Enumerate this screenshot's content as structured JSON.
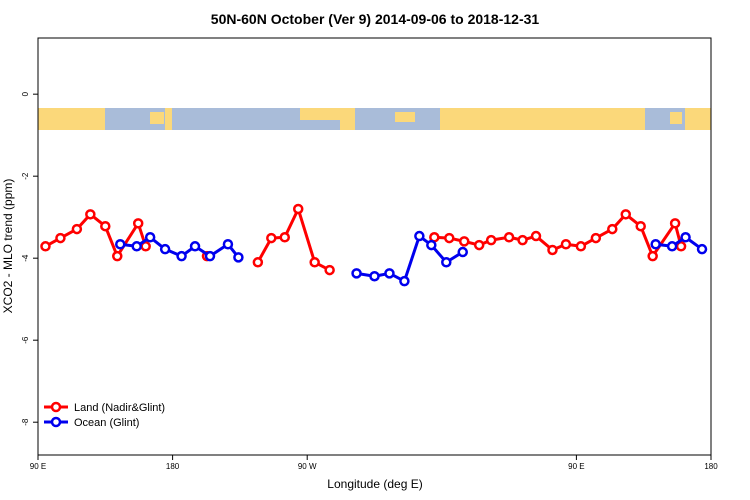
{
  "chart_data": {
    "type": "line",
    "title": "50N-60N October (Ver 9)   2014-09-06 to 2018-12-31",
    "x_label": "Longitude (deg E)",
    "y_label": "XCO2 - MLO trend (ppm)",
    "xlim": [
      90,
      540
    ],
    "ylim": [
      -8.8,
      1.37
    ],
    "xticks": [
      {
        "value": 90,
        "label": "90 E"
      },
      180,
      {
        "value": 270,
        "label": "90 W"
      },
      {
        "value": 450,
        "label": "90 E"
      },
      {
        "value": 540,
        "label": "180"
      }
    ],
    "yticks": [
      -8,
      -6,
      -4,
      -2,
      0
    ],
    "legend": "bottom-left",
    "series": [
      {
        "name": "Land (Nadir&Glint)",
        "color": "#ff0000",
        "x": [
          95,
          105,
          116,
          125,
          135,
          143,
          157,
          162,
          null,
          203,
          null,
          237,
          246,
          255,
          264,
          275,
          285,
          null,
          355,
          365,
          375,
          385,
          393,
          405,
          414,
          423,
          434,
          443,
          453,
          463,
          474,
          483,
          493,
          501,
          516,
          520
        ],
        "values": [
          -3.71,
          -3.51,
          -3.29,
          -2.93,
          -3.22,
          -3.95,
          -3.15,
          -3.71,
          null,
          -3.95,
          null,
          -4.1,
          -3.51,
          -3.49,
          -2.8,
          -4.1,
          -4.29,
          null,
          -3.49,
          -3.51,
          -3.59,
          -3.68,
          -3.56,
          -3.49,
          -3.56,
          -3.46,
          -3.8,
          -3.66,
          -3.71,
          -3.51,
          -3.29,
          -2.93,
          -3.22,
          -3.95,
          -3.15,
          -3.71
        ]
      },
      {
        "name": "Ocean (Glint)",
        "color": "#0000ee",
        "x": [
          145,
          156,
          165,
          175,
          186,
          195,
          205,
          217,
          224,
          null,
          303,
          315,
          325,
          335,
          345,
          353,
          363,
          374,
          null,
          503,
          514,
          523,
          534
        ],
        "values": [
          -3.66,
          -3.71,
          -3.49,
          -3.78,
          -3.95,
          -3.71,
          -3.95,
          -3.66,
          -3.98,
          null,
          -4.37,
          -4.44,
          -4.37,
          -4.56,
          -3.46,
          -3.68,
          -4.1,
          -3.85,
          null,
          -3.66,
          -3.71,
          -3.49,
          -3.78
        ]
      }
    ]
  }
}
